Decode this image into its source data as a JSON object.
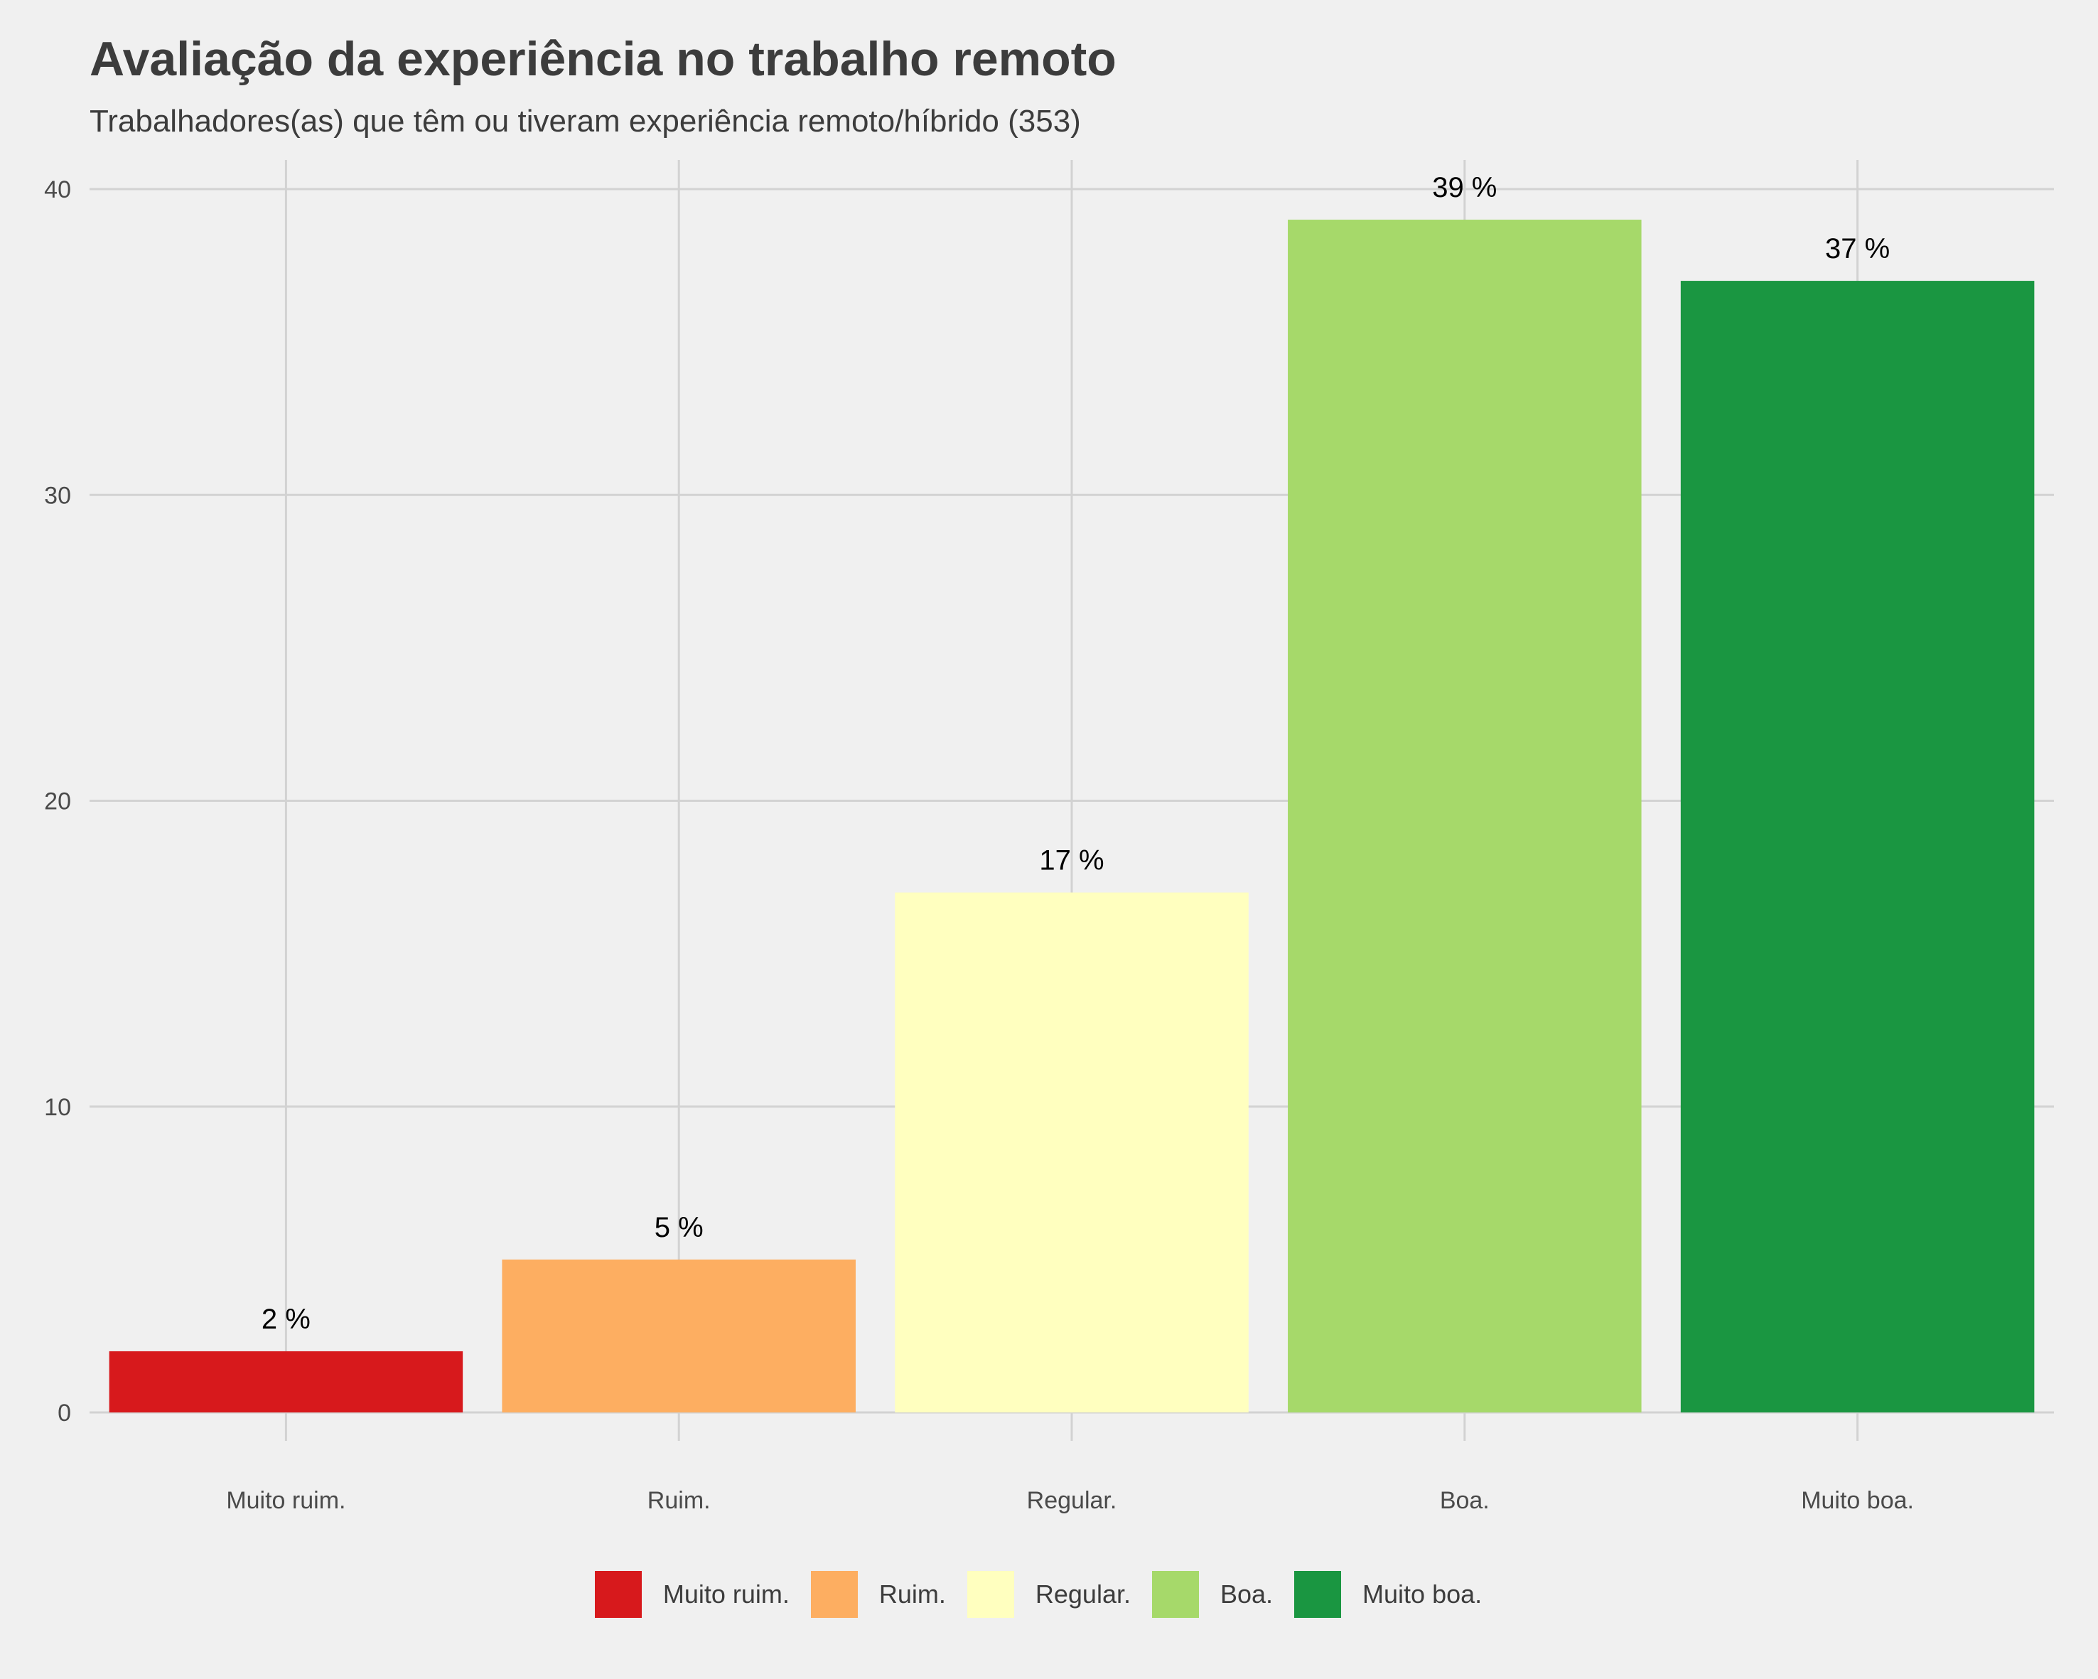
{
  "chart_data": {
    "type": "bar",
    "title": "Avaliação da experiência no trabalho remoto",
    "subtitle": "Trabalhadores(as) que têm ou tiveram experiência remoto/híbrido (353)",
    "categories": [
      "Muito ruim.",
      "Ruim.",
      "Regular.",
      "Boa.",
      "Muito boa."
    ],
    "values": [
      2,
      5,
      17,
      39,
      37
    ],
    "data_labels": [
      "2 %",
      "5 %",
      "17 %",
      "39 %",
      "37 %"
    ],
    "colors": [
      "#d7191c",
      "#fdae61",
      "#ffffbf",
      "#a6d96a",
      "#1a9641"
    ],
    "ylim": [
      0,
      40
    ],
    "yticks": [
      0,
      10,
      20,
      30,
      40
    ],
    "xlabel": "",
    "ylabel": "",
    "grid": true,
    "legend": {
      "position": "bottom",
      "entries": [
        "Muito ruim.",
        "Ruim.",
        "Regular.",
        "Boa.",
        "Muito boa."
      ]
    }
  }
}
